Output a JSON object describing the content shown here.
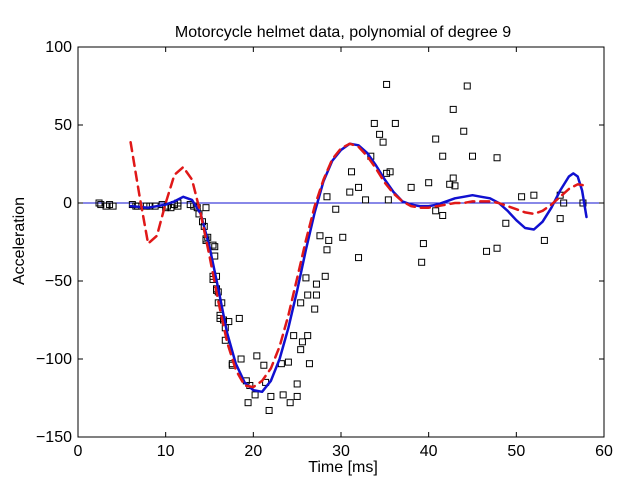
{
  "chart_data": {
    "type": "scatter",
    "title": "Motorcycle helmet data, polynomial of degree 9",
    "xlabel": "Time [ms]",
    "ylabel": "Acceleration",
    "xlim": [
      0,
      60
    ],
    "ylim": [
      -150,
      100
    ],
    "xticks": [
      0,
      10,
      20,
      30,
      40,
      50,
      60
    ],
    "yticks": [
      -150,
      -100,
      -50,
      0,
      50,
      100
    ],
    "grid": false,
    "legend": "none",
    "reference_line_y": 0,
    "colors": {
      "markers": "#000000",
      "solid_curve": "#1010d0",
      "dashed_curve": "#e01818",
      "zero_line": "#1010d0"
    },
    "series": [
      {
        "type": "scatter",
        "marker": "square",
        "x": [
          2.4,
          2.6,
          3.2,
          3.6,
          4.0,
          6.2,
          6.6,
          6.8,
          7.8,
          8.2,
          8.8,
          9.6,
          10.0,
          10.2,
          10.6,
          11.0,
          11.4,
          11.4,
          12.8,
          13.2,
          13.6,
          13.8,
          14.2,
          14.4,
          14.6,
          14.6,
          14.6,
          14.8,
          15.4,
          15.4,
          15.4,
          15.6,
          15.6,
          15.8,
          15.8,
          15.8,
          16.0,
          16.0,
          16.2,
          16.2,
          16.4,
          16.6,
          16.8,
          16.8,
          17.2,
          17.6,
          17.6,
          18.4,
          18.6,
          19.2,
          19.4,
          19.6,
          20.2,
          20.4,
          21.2,
          21.4,
          21.8,
          22.0,
          23.2,
          23.4,
          24.0,
          24.2,
          24.6,
          25.0,
          25.0,
          25.4,
          25.4,
          25.6,
          26.0,
          26.2,
          26.2,
          26.4,
          27.0,
          27.2,
          27.2,
          27.6,
          28.2,
          28.4,
          28.4,
          28.6,
          29.4,
          30.2,
          31.0,
          31.2,
          32.0,
          32.0,
          32.8,
          33.4,
          33.8,
          34.4,
          34.8,
          35.2,
          35.2,
          35.4,
          35.6,
          36.2,
          38.0,
          39.2,
          39.4,
          40.0,
          40.8,
          40.8,
          41.6,
          41.6,
          42.4,
          42.8,
          42.8,
          43.0,
          44.0,
          44.4,
          45.0,
          46.6,
          47.8,
          47.8,
          48.8,
          50.6,
          52.0,
          53.2,
          55.0,
          55.0,
          55.4,
          57.6
        ],
        "y": [
          0,
          -1,
          -2,
          -1,
          -2,
          -1,
          -2,
          -2,
          -2,
          -2,
          -2,
          -1,
          -3,
          -2,
          -3,
          -1,
          -2,
          0,
          -1,
          -2,
          -3,
          -7,
          -12,
          -15,
          -23,
          -24,
          -3,
          -22,
          -27,
          -47,
          -49,
          -28,
          -34,
          -47,
          -55,
          -56,
          -64,
          -57,
          -72,
          -74,
          -64,
          -75,
          -80,
          -88,
          -76,
          -103,
          -104,
          -74,
          -100,
          -114,
          -128,
          -117,
          -123,
          -98,
          -104,
          -115,
          -133,
          -124,
          -103,
          -123,
          -102,
          -128,
          -85,
          -116,
          -124,
          -64,
          -94,
          -89,
          -48,
          -59,
          -85,
          -103,
          -68,
          -52,
          -59,
          -21,
          -47,
          4,
          -30,
          -24,
          -4,
          -22,
          7,
          20,
          -35,
          10,
          2,
          30,
          51,
          44,
          39,
          76,
          19,
          2,
          20,
          51,
          10,
          -38,
          -26,
          13,
          41,
          -5,
          30,
          -8,
          12,
          16,
          60,
          11,
          46,
          75,
          30,
          -31,
          -29,
          29,
          -13,
          4,
          5,
          -24,
          -10,
          5,
          0,
          0
        ],
        "x_extra": [],
        "y_extra": []
      },
      {
        "type": "line",
        "style": "solid",
        "x": [
          6,
          8,
          10,
          11,
          12,
          13,
          14,
          15,
          16,
          17,
          18,
          19,
          20,
          21,
          22,
          23,
          24,
          25,
          26,
          27,
          28,
          29,
          30,
          31,
          32,
          33,
          34,
          35,
          36,
          37,
          38,
          39,
          40,
          41,
          42,
          43,
          44,
          45,
          46,
          47,
          48,
          49,
          50,
          51,
          52,
          53,
          54,
          55,
          56,
          56.5,
          57,
          57.5,
          58
        ],
        "y": [
          -2,
          -3,
          -1,
          1,
          4,
          2,
          -7,
          -28,
          -55,
          -83,
          -103,
          -115,
          -120,
          -121,
          -114,
          -100,
          -80,
          -56,
          -30,
          -6,
          14,
          27,
          34,
          38,
          37,
          32,
          24,
          15,
          7,
          1,
          -1,
          -2,
          -2,
          -1,
          1,
          3,
          4,
          5,
          4,
          3,
          0,
          -5,
          -11,
          -16,
          -17,
          -12,
          -3,
          8,
          17,
          19,
          17,
          8,
          -9
        ]
      },
      {
        "type": "line",
        "style": "dashed",
        "x": [
          6,
          7,
          8,
          9,
          10,
          11,
          12,
          13,
          14,
          15,
          16,
          17,
          18,
          19,
          20,
          21,
          22,
          23,
          24,
          25,
          26,
          27,
          28,
          29,
          30,
          31,
          32,
          33,
          34,
          35,
          36,
          37,
          38,
          39,
          40,
          41,
          42,
          43,
          44,
          45,
          46,
          47,
          48,
          49,
          50,
          51,
          52,
          53,
          54,
          55,
          56,
          57,
          58
        ],
        "y": [
          39,
          5,
          -26,
          -21,
          0,
          18,
          23,
          15,
          -7,
          -34,
          -63,
          -89,
          -107,
          -117,
          -118,
          -114,
          -106,
          -92,
          -72,
          -48,
          -24,
          -2,
          15,
          28,
          35,
          38,
          36,
          30,
          22,
          13,
          6,
          1,
          -2,
          -3,
          -3,
          -2,
          -1,
          0,
          0,
          1,
          1,
          1,
          0,
          -2,
          -4,
          -6,
          -7,
          -5,
          -1,
          4,
          9,
          12,
          11
        ]
      }
    ]
  }
}
